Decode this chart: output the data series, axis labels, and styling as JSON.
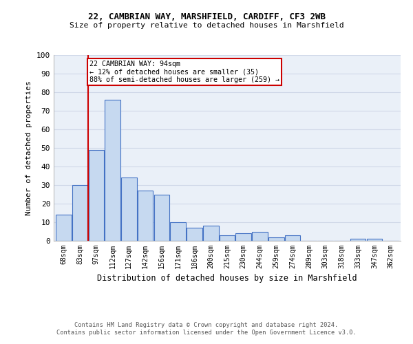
{
  "title1": "22, CAMBRIAN WAY, MARSHFIELD, CARDIFF, CF3 2WB",
  "title2": "Size of property relative to detached houses in Marshfield",
  "xlabel": "Distribution of detached houses by size in Marshfield",
  "ylabel": "Number of detached properties",
  "footer1": "Contains HM Land Registry data © Crown copyright and database right 2024.",
  "footer2": "Contains public sector information licensed under the Open Government Licence v3.0.",
  "bar_labels": [
    "68sqm",
    "83sqm",
    "97sqm",
    "112sqm",
    "127sqm",
    "142sqm",
    "156sqm",
    "171sqm",
    "186sqm",
    "200sqm",
    "215sqm",
    "230sqm",
    "244sqm",
    "259sqm",
    "274sqm",
    "289sqm",
    "303sqm",
    "318sqm",
    "333sqm",
    "347sqm",
    "362sqm"
  ],
  "bar_values": [
    14,
    30,
    49,
    76,
    34,
    27,
    25,
    10,
    7,
    8,
    3,
    4,
    5,
    2,
    3,
    0,
    0,
    0,
    1,
    1,
    0
  ],
  "bar_color": "#c6d9f0",
  "bar_edgecolor": "#4472c4",
  "property_line_color": "#cc0000",
  "annotation_text": "22 CAMBRIAN WAY: 94sqm\n← 12% of detached houses are smaller (35)\n88% of semi-detached houses are larger (259) →",
  "annotation_box_color": "#cc0000",
  "ylim": [
    0,
    100
  ],
  "yticks": [
    0,
    10,
    20,
    30,
    40,
    50,
    60,
    70,
    80,
    90,
    100
  ],
  "grid_color": "#d0d8e8",
  "bg_color": "#eaf0f8"
}
